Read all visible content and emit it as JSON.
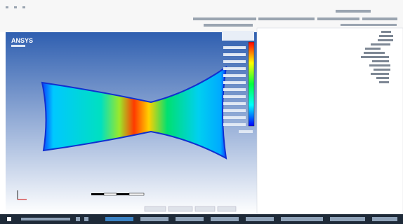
{
  "viewport": {
    "logo": "ANSYS"
  }
}
